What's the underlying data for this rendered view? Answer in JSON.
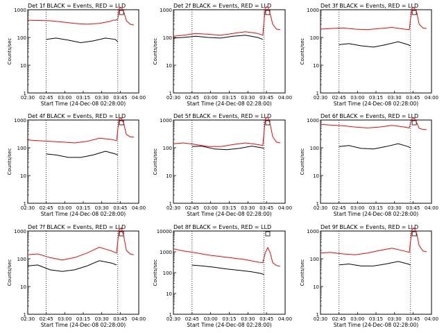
{
  "chart_data": [
    {
      "type": "line",
      "title": "Det 1f BLACK = Events, RED = LLD",
      "xlabel": "Start Time (24-Dec-08 02:28:00)",
      "ylabel": "Counts/sec",
      "x_ticks": [
        "02:30",
        "02:45",
        "03:00",
        "03:15",
        "03:30",
        "03:45",
        "04:00"
      ],
      "y_ticks": [
        "1",
        "10",
        "100",
        "1000"
      ],
      "ylim": [
        1,
        1000
      ],
      "yscale": "log",
      "xlim_min": [
        2,
        66
      ],
      "vlines_min": [
        17,
        75
      ],
      "series": [
        {
          "color": "#000000",
          "x": [
            17,
            25,
            35,
            45,
            55,
            65,
            73,
            75
          ],
          "y": [
            85,
            95,
            80,
            65,
            75,
            95,
            85,
            70
          ]
        },
        {
          "color": "#ff0000",
          "x": [
            2,
            10,
            20,
            30,
            40,
            50,
            60,
            69,
            71,
            73,
            75,
            76,
            78,
            80,
            82,
            85,
            88
          ],
          "y": [
            420,
            410,
            400,
            360,
            320,
            300,
            320,
            380,
            420,
            420,
            450,
            1100,
            1200,
            800,
            400,
            300,
            280
          ]
        }
      ]
    },
    {
      "type": "line",
      "title": "Det 2f BLACK = Events, RED = LLD",
      "xlabel": "Start Time (24-Dec-08 02:28:00)",
      "ylabel": "Counts/sec",
      "x_ticks": [
        "02:30",
        "02:45",
        "03:00",
        "03:15",
        "03:30",
        "03:45",
        "04:00"
      ],
      "y_ticks": [
        "1",
        "10",
        "100",
        "1000"
      ],
      "ylim": [
        1,
        1000
      ],
      "yscale": "log",
      "series": [
        {
          "color": "#000000",
          "x": [
            2,
            10,
            20,
            30,
            40,
            50,
            60,
            70,
            74
          ],
          "y": [
            95,
            100,
            110,
            100,
            95,
            110,
            120,
            100,
            85
          ]
        },
        {
          "color": "#ff0000",
          "x": [
            2,
            10,
            20,
            30,
            40,
            50,
            60,
            70,
            74,
            76,
            78,
            80,
            82,
            85,
            88
          ],
          "y": [
            110,
            120,
            140,
            130,
            120,
            140,
            160,
            140,
            120,
            1200,
            1300,
            700,
            300,
            200,
            190
          ]
        }
      ]
    },
    {
      "type": "line",
      "title": "Det 3f BLACK = Events, RED = LLD",
      "xlabel": "Start Time (24-Dec-08 02:28:00)",
      "ylabel": "Counts/sec",
      "x_ticks": [
        "02:30",
        "02:45",
        "03:00",
        "03:15",
        "03:30",
        "03:45",
        "04:00"
      ],
      "y_ticks": [
        "1",
        "10",
        "100",
        "1000"
      ],
      "ylim": [
        1,
        1000
      ],
      "yscale": "log",
      "series": [
        {
          "color": "#000000",
          "x": [
            17,
            25,
            35,
            45,
            55,
            65,
            73,
            75
          ],
          "y": [
            55,
            60,
            50,
            45,
            55,
            70,
            55,
            50
          ]
        },
        {
          "color": "#ff0000",
          "x": [
            2,
            10,
            20,
            30,
            40,
            50,
            60,
            70,
            74,
            76,
            78,
            80,
            82,
            85,
            88
          ],
          "y": [
            200,
            210,
            220,
            200,
            190,
            210,
            230,
            200,
            190,
            1100,
            1200,
            800,
            300,
            220,
            210
          ]
        }
      ]
    },
    {
      "type": "line",
      "title": "Det 4f BLACK = Events, RED = LLD",
      "xlabel": "Start Time (24-Dec-08 02:28:00)",
      "ylabel": "Counts/sec",
      "x_ticks": [
        "02:30",
        "02:45",
        "03:00",
        "03:15",
        "03:30",
        "03:45",
        "04:00"
      ],
      "y_ticks": [
        "1",
        "10",
        "100",
        "1000"
      ],
      "ylim": [
        1,
        1000
      ],
      "yscale": "log",
      "series": [
        {
          "color": "#000000",
          "x": [
            17,
            25,
            35,
            45,
            55,
            65,
            73,
            75
          ],
          "y": [
            60,
            55,
            45,
            45,
            55,
            75,
            60,
            55
          ]
        },
        {
          "color": "#ff0000",
          "x": [
            2,
            10,
            20,
            30,
            40,
            50,
            60,
            70,
            74,
            76,
            78,
            80,
            82,
            85,
            88
          ],
          "y": [
            190,
            180,
            170,
            160,
            150,
            170,
            220,
            200,
            180,
            1100,
            1200,
            700,
            300,
            250,
            240
          ]
        }
      ]
    },
    {
      "type": "line",
      "title": "Det 5f BLACK = Events, RED = LLD",
      "xlabel": "Start Time (24-Dec-08 02:28:00)",
      "ylabel": "Counts/sec",
      "x_ticks": [
        "02:30",
        "02:45",
        "03:00",
        "03:15",
        "03:30",
        "03:45",
        "04:00"
      ],
      "y_ticks": [
        "1",
        "10",
        "100",
        "1000"
      ],
      "ylim": [
        1,
        1000
      ],
      "yscale": "log",
      "series": [
        {
          "color": "#000000",
          "x": [
            17,
            25,
            35,
            45,
            55,
            65,
            73,
            75
          ],
          "y": [
            110,
            115,
            90,
            85,
            95,
            115,
            100,
            95
          ]
        },
        {
          "color": "#ff0000",
          "x": [
            2,
            10,
            20,
            30,
            40,
            50,
            60,
            70,
            74,
            76,
            78,
            80,
            82,
            85,
            88
          ],
          "y": [
            140,
            150,
            130,
            110,
            110,
            130,
            150,
            130,
            120,
            1100,
            1300,
            700,
            250,
            160,
            150
          ]
        }
      ]
    },
    {
      "type": "line",
      "title": "Det 6f BLACK = Events, RED = LLD",
      "xlabel": "Start Time (24-Dec-08 02:28:00)",
      "ylabel": "Counts/sec",
      "x_ticks": [
        "02:30",
        "02:45",
        "03:00",
        "03:15",
        "03:30",
        "03:45",
        "04:00"
      ],
      "y_ticks": [
        "1",
        "10",
        "100",
        "1000"
      ],
      "ylim": [
        1,
        1000
      ],
      "yscale": "log",
      "series": [
        {
          "color": "#000000",
          "x": [
            17,
            25,
            35,
            45,
            55,
            65,
            73,
            75
          ],
          "y": [
            110,
            120,
            95,
            90,
            110,
            140,
            110,
            100
          ]
        },
        {
          "color": "#ff0000",
          "x": [
            2,
            10,
            20,
            30,
            40,
            50,
            60,
            70,
            74,
            76,
            78,
            80,
            82,
            85,
            88
          ],
          "y": [
            700,
            660,
            620,
            560,
            520,
            560,
            640,
            560,
            520,
            1100,
            1200,
            800,
            500,
            460,
            450
          ]
        }
      ]
    },
    {
      "type": "line",
      "title": "Det 7f BLACK = Events, RED = LLD",
      "xlabel": "Start Time (24-Dec-08 02:28:00)",
      "ylabel": "Counts/sec",
      "x_ticks": [
        "02:30",
        "02:45",
        "03:00",
        "03:15",
        "03:30",
        "03:45",
        "04:00"
      ],
      "y_ticks": [
        "1",
        "10",
        "100",
        "1000"
      ],
      "ylim": [
        1,
        1000
      ],
      "yscale": "log",
      "series": [
        {
          "color": "#000000",
          "x": [
            2,
            10,
            20,
            30,
            40,
            50,
            60,
            70,
            74
          ],
          "y": [
            55,
            60,
            40,
            35,
            40,
            55,
            85,
            70,
            60
          ]
        },
        {
          "color": "#ff0000",
          "x": [
            2,
            10,
            20,
            30,
            40,
            50,
            60,
            70,
            74,
            76,
            78,
            80,
            82,
            85,
            88
          ],
          "y": [
            140,
            150,
            110,
            90,
            110,
            160,
            260,
            190,
            160,
            1100,
            1300,
            600,
            200,
            150,
            140
          ]
        }
      ]
    },
    {
      "type": "line",
      "title": "Det 8f BLACK = Events, RED = LLD",
      "xlabel": "Start Time (24-Dec-08 02:28:00)",
      "ylabel": "Counts/sec",
      "x_ticks": [
        "02:30",
        "02:45",
        "03:00",
        "03:15",
        "03:30",
        "03:45",
        "04:00"
      ],
      "y_ticks": [
        "1",
        "10",
        "100",
        "1000",
        "10000"
      ],
      "ylim": [
        1,
        10000
      ],
      "yscale": "log",
      "series": [
        {
          "color": "#000000",
          "x": [
            17,
            25,
            35,
            45,
            55,
            65,
            73,
            75
          ],
          "y": [
            230,
            210,
            180,
            150,
            130,
            110,
            90,
            80
          ]
        },
        {
          "color": "#ff0000",
          "x": [
            2,
            10,
            20,
            30,
            40,
            50,
            60,
            70,
            74,
            76,
            78,
            80,
            82,
            85,
            88
          ],
          "y": [
            1400,
            1100,
            900,
            700,
            600,
            500,
            420,
            320,
            300,
            900,
            1600,
            900,
            300,
            220,
            200
          ]
        }
      ]
    },
    {
      "type": "line",
      "title": "Det 9f BLACK = Events, RED = LLD",
      "xlabel": "Start Time (24-Dec-08 02:28:00)",
      "ylabel": "Counts/sec",
      "x_ticks": [
        "02:30",
        "02:45",
        "03:00",
        "03:15",
        "03:30",
        "03:45",
        "04:00"
      ],
      "y_ticks": [
        "1",
        "10",
        "100",
        "1000"
      ],
      "ylim": [
        1,
        1000
      ],
      "yscale": "log",
      "series": [
        {
          "color": "#000000",
          "x": [
            17,
            25,
            35,
            45,
            55,
            65,
            73,
            75
          ],
          "y": [
            60,
            65,
            55,
            55,
            65,
            80,
            65,
            60
          ]
        },
        {
          "color": "#ff0000",
          "x": [
            2,
            10,
            20,
            30,
            40,
            50,
            60,
            70,
            74,
            76,
            78,
            80,
            82,
            85,
            88
          ],
          "y": [
            160,
            170,
            150,
            140,
            160,
            200,
            240,
            190,
            170,
            1100,
            1300,
            800,
            300,
            190,
            180
          ]
        }
      ]
    }
  ]
}
